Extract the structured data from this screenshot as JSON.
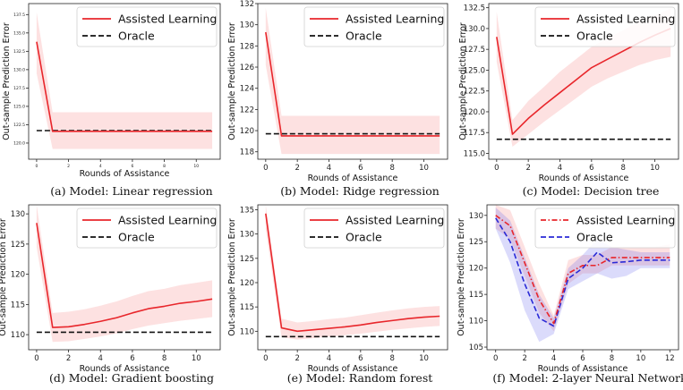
{
  "chart_data": [
    {
      "type": "line",
      "caption": "(a) Model: Linear regression",
      "xlabel": "Rounds of Assistance",
      "ylabel": "Out-sample Prediction Error",
      "xlim": [
        -0.5,
        11.5
      ],
      "ylim": [
        117.8,
        139.0
      ],
      "xticks": [
        0,
        2,
        4,
        6,
        8,
        10
      ],
      "yticks": [
        120.0,
        122.5,
        125.0,
        127.5,
        130.0,
        132.5,
        135.0,
        137.5
      ],
      "ytick_labels": [
        "120.0",
        "122.5",
        "125.0",
        "127.5",
        "130.0",
        "132.5",
        "135.0",
        "137.5"
      ],
      "small_ticks": true,
      "legend": [
        "Assisted Learning",
        "Oracle"
      ],
      "x": [
        0,
        1,
        2,
        3,
        4,
        5,
        6,
        7,
        8,
        9,
        10,
        11
      ],
      "series": [
        {
          "name": "Assisted Learning",
          "style": "solid",
          "color": "#e8262b",
          "values": [
            133.8,
            121.6,
            121.6,
            121.6,
            121.6,
            121.6,
            121.6,
            121.6,
            121.6,
            121.6,
            121.6,
            121.6
          ],
          "lower": [
            129.5,
            119.2,
            119.2,
            119.2,
            119.2,
            119.2,
            119.2,
            119.2,
            119.2,
            119.2,
            119.2,
            119.2
          ],
          "upper": [
            137.8,
            124.2,
            124.2,
            124.2,
            124.2,
            124.2,
            124.2,
            124.2,
            124.2,
            124.2,
            124.2,
            124.2
          ]
        },
        {
          "name": "Oracle",
          "style": "dashed",
          "color": "#111111",
          "values": [
            121.7,
            121.7,
            121.7,
            121.7,
            121.7,
            121.7,
            121.7,
            121.7,
            121.7,
            121.7,
            121.7,
            121.7
          ]
        }
      ]
    },
    {
      "type": "line",
      "caption": "(b) Model: Ridge regression",
      "xlabel": "Rounds of Assistance",
      "ylabel": "Out-sample Prediction Error",
      "xlim": [
        -0.5,
        11.5
      ],
      "ylim": [
        117.3,
        132.0
      ],
      "xticks": [
        0,
        2,
        4,
        6,
        8,
        10
      ],
      "yticks": [
        118,
        120,
        122,
        124,
        126,
        128,
        130,
        132
      ],
      "ytick_labels": [
        "118",
        "120",
        "122",
        "124",
        "126",
        "128",
        "130",
        "132"
      ],
      "small_ticks": false,
      "legend": [
        "Assisted Learning",
        "Oracle"
      ],
      "x": [
        0,
        1,
        2,
        3,
        4,
        5,
        6,
        7,
        8,
        9,
        10,
        11
      ],
      "series": [
        {
          "name": "Assisted Learning",
          "style": "solid",
          "color": "#e8262b",
          "values": [
            129.3,
            119.5,
            119.5,
            119.5,
            119.5,
            119.5,
            119.5,
            119.5,
            119.5,
            119.5,
            119.5,
            119.5
          ],
          "lower": [
            126.2,
            117.8,
            117.8,
            117.8,
            117.8,
            117.8,
            117.8,
            117.8,
            117.8,
            117.8,
            117.8,
            117.8
          ],
          "upper": [
            131.6,
            121.4,
            121.4,
            121.4,
            121.4,
            121.4,
            121.4,
            121.4,
            121.4,
            121.4,
            121.4,
            121.4
          ]
        },
        {
          "name": "Oracle",
          "style": "dashed",
          "color": "#111111",
          "values": [
            119.7,
            119.7,
            119.7,
            119.7,
            119.7,
            119.7,
            119.7,
            119.7,
            119.7,
            119.7,
            119.7,
            119.7
          ]
        }
      ]
    },
    {
      "type": "line",
      "caption": "(c) Model: Decision tree",
      "xlabel": "Rounds of Assistance",
      "ylabel": "Out-sample Prediction Error",
      "xlim": [
        -0.5,
        11.5
      ],
      "ylim": [
        114.3,
        133.0
      ],
      "xticks": [
        0,
        2,
        4,
        6,
        8,
        10
      ],
      "yticks": [
        115.0,
        117.5,
        120.0,
        122.5,
        125.0,
        127.5,
        130.0,
        132.5
      ],
      "ytick_labels": [
        "115.0",
        "117.5",
        "120.0",
        "122.5",
        "125.0",
        "127.5",
        "130.0",
        "132.5"
      ],
      "small_ticks": false,
      "legend": [
        "Assisted Learning",
        "Oracle"
      ],
      "x": [
        0,
        1,
        2,
        3,
        4,
        5,
        6,
        7,
        8,
        9,
        10,
        11
      ],
      "series": [
        {
          "name": "Assisted Learning",
          "style": "solid",
          "color": "#e8262b",
          "values": [
            129.0,
            117.3,
            119.2,
            120.8,
            122.3,
            123.8,
            125.3,
            126.3,
            127.3,
            128.3,
            129.2,
            130.0
          ],
          "lower": [
            126.0,
            115.8,
            117.3,
            118.8,
            120.2,
            121.6,
            123.0,
            124.0,
            124.8,
            125.6,
            126.2,
            126.6
          ],
          "upper": [
            132.0,
            119.0,
            121.3,
            123.0,
            124.8,
            126.3,
            127.8,
            128.8,
            129.8,
            130.8,
            131.6,
            132.4
          ]
        },
        {
          "name": "Oracle",
          "style": "dashed",
          "color": "#111111",
          "values": [
            116.7,
            116.7,
            116.7,
            116.7,
            116.7,
            116.7,
            116.7,
            116.7,
            116.7,
            116.7,
            116.7,
            116.7
          ]
        }
      ]
    },
    {
      "type": "line",
      "caption": "(d) Model: Gradient boosting",
      "xlabel": "Rounds of Assistance",
      "ylabel": "Out-sample Prediction Error",
      "xlim": [
        -0.5,
        11.5
      ],
      "ylim": [
        107.5,
        131.5
      ],
      "xticks": [
        0,
        2,
        4,
        6,
        8,
        10
      ],
      "yticks": [
        110,
        115,
        120,
        125,
        130
      ],
      "ytick_labels": [
        "110",
        "115",
        "120",
        "125",
        "130"
      ],
      "small_ticks": false,
      "legend": [
        "Assisted Learning",
        "Oracle"
      ],
      "x": [
        0,
        1,
        2,
        3,
        4,
        5,
        6,
        7,
        8,
        9,
        10,
        11
      ],
      "series": [
        {
          "name": "Assisted Learning",
          "style": "solid",
          "color": "#e8262b",
          "values": [
            128.5,
            111.2,
            111.3,
            111.7,
            112.2,
            112.8,
            113.6,
            114.3,
            114.7,
            115.2,
            115.5,
            115.9
          ],
          "lower": [
            124.5,
            108.8,
            108.9,
            109.3,
            109.7,
            110.2,
            110.9,
            111.5,
            111.9,
            112.3,
            112.6,
            112.9
          ],
          "upper": [
            131.5,
            113.6,
            113.8,
            114.2,
            114.8,
            115.5,
            116.4,
            117.2,
            117.6,
            118.2,
            118.6,
            119.0
          ]
        },
        {
          "name": "Oracle",
          "style": "dashed",
          "color": "#111111",
          "values": [
            110.4,
            110.4,
            110.4,
            110.4,
            110.4,
            110.4,
            110.4,
            110.4,
            110.4,
            110.4,
            110.4,
            110.4
          ]
        }
      ]
    },
    {
      "type": "line",
      "caption": "(e) Model: Random forest",
      "xlabel": "Rounds of Assistance",
      "ylabel": "Out-sample Prediction Error",
      "xlim": [
        -0.5,
        11.5
      ],
      "ylim": [
        106.2,
        136.0
      ],
      "xticks": [
        0,
        2,
        4,
        6,
        8,
        10
      ],
      "yticks": [
        110,
        115,
        120,
        125,
        130,
        135
      ],
      "ytick_labels": [
        "110",
        "115",
        "120",
        "125",
        "130",
        "135"
      ],
      "small_ticks": false,
      "legend": [
        "Assisted Learning",
        "Oracle"
      ],
      "x": [
        0,
        1,
        2,
        3,
        4,
        5,
        6,
        7,
        8,
        9,
        10,
        11
      ],
      "series": [
        {
          "name": "Assisted Learning",
          "style": "solid",
          "color": "#e8262b",
          "values": [
            134.2,
            110.7,
            110.0,
            110.3,
            110.6,
            110.9,
            111.3,
            111.8,
            112.2,
            112.6,
            112.9,
            113.1
          ],
          "lower": [
            131.0,
            108.8,
            108.3,
            108.6,
            108.9,
            109.2,
            109.5,
            109.9,
            110.3,
            110.6,
            110.9,
            111.1
          ],
          "upper": [
            136.0,
            112.6,
            111.8,
            112.1,
            112.5,
            112.8,
            113.3,
            113.8,
            114.3,
            114.7,
            115.0,
            115.2
          ]
        },
        {
          "name": "Oracle",
          "style": "dashed",
          "color": "#111111",
          "values": [
            108.9,
            108.9,
            108.9,
            108.9,
            108.9,
            108.9,
            108.9,
            108.9,
            108.9,
            108.9,
            108.9,
            108.9
          ]
        }
      ]
    },
    {
      "type": "line",
      "caption": "(f) Model: 2-layer Neural Network",
      "xlabel": "Rounds of Assistance",
      "ylabel": "Out-sample Prediction Error",
      "xlim": [
        -0.6,
        12.6
      ],
      "ylim": [
        104.5,
        132.0
      ],
      "xticks": [
        0,
        2,
        4,
        6,
        8,
        10,
        12
      ],
      "yticks": [
        105,
        110,
        115,
        120,
        125,
        130
      ],
      "ytick_labels": [
        "105",
        "110",
        "115",
        "120",
        "125",
        "130"
      ],
      "small_ticks": false,
      "legend": [
        "Assisted Learning",
        "Oracle"
      ],
      "x": [
        0,
        1,
        2,
        3,
        4,
        5,
        6,
        7,
        8,
        9,
        10,
        11,
        12
      ],
      "series": [
        {
          "name": "Assisted Learning",
          "style": "dashdot",
          "color": "#e8262b",
          "values": [
            130.0,
            128.0,
            121.0,
            114.0,
            109.5,
            119.0,
            120.5,
            120.5,
            122.0,
            122.0,
            122.0,
            122.0,
            122.0
          ],
          "lower": [
            127.5,
            125.5,
            118.5,
            111.5,
            108.0,
            117.0,
            119.0,
            119.0,
            120.5,
            120.5,
            120.5,
            120.5,
            120.5
          ],
          "upper": [
            132.0,
            131.0,
            124.0,
            117.0,
            111.0,
            121.5,
            122.5,
            122.5,
            124.0,
            124.0,
            124.0,
            124.0,
            124.5
          ]
        },
        {
          "name": "Oracle",
          "style": "dashed",
          "color": "#2a2ad6",
          "values": [
            129.5,
            125.0,
            117.0,
            110.5,
            109.0,
            118.0,
            120.0,
            123.0,
            121.0,
            121.2,
            121.5,
            121.5,
            121.5
          ],
          "lower": [
            127.5,
            121.0,
            112.0,
            106.0,
            107.5,
            116.0,
            117.5,
            119.0,
            118.0,
            118.5,
            120.0,
            120.0,
            120.0
          ],
          "upper": [
            131.5,
            129.0,
            122.0,
            115.0,
            110.5,
            120.0,
            122.5,
            125.5,
            124.0,
            123.5,
            123.0,
            123.0,
            123.0
          ]
        }
      ]
    }
  ]
}
